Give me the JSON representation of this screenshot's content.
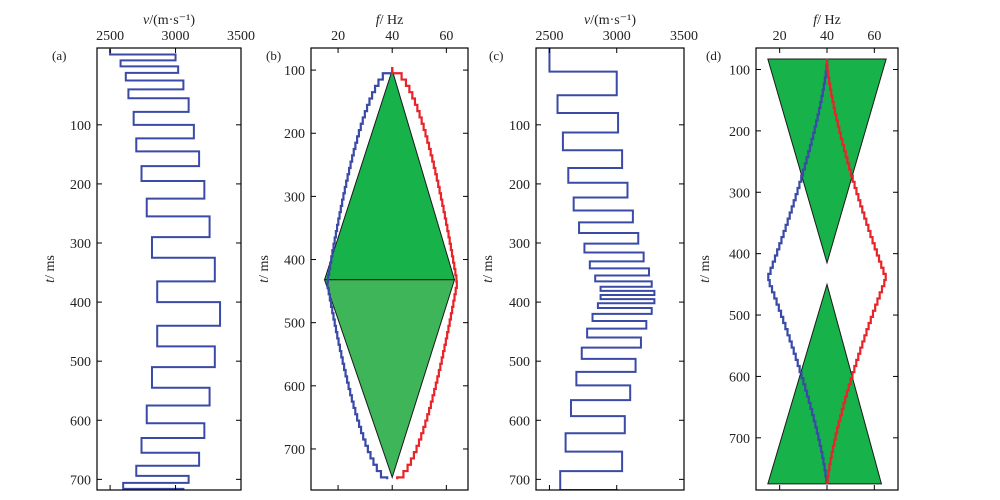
{
  "colors": {
    "velocity": "#3a4aa6",
    "freq_low": "#3a4aa6",
    "freq_high": "#e8242b",
    "fill_top": "#17b24a",
    "fill_bottom": "#3fb55a",
    "frame": "#000000"
  },
  "chart_data": [
    {
      "panel": "(a)",
      "type": "line",
      "title": "",
      "xlabel_prefix": "v",
      "xlabel_unit": "/(m·s⁻¹)",
      "ylabel_prefix": "t",
      "ylabel_unit": "/ ms",
      "xlim": [
        2400,
        3500
      ],
      "ylim": [
        -30,
        718
      ],
      "xticks": [
        2500,
        3000,
        3500
      ],
      "yticks": [
        100,
        200,
        300,
        400,
        500,
        600,
        700
      ],
      "series": [
        {
          "name": "velocity",
          "step_profile": [
            {
              "t0": -28,
              "t1": -19,
              "v": 2500
            },
            {
              "t0": -19,
              "t1": -9,
              "v": 3000
            },
            {
              "t0": -9,
              "t1": 1,
              "v": 2580
            },
            {
              "t0": 1,
              "t1": 12,
              "v": 3020
            },
            {
              "t0": 12,
              "t1": 25,
              "v": 2620
            },
            {
              "t0": 25,
              "t1": 40,
              "v": 3060
            },
            {
              "t0": 40,
              "t1": 55,
              "v": 2640
            },
            {
              "t0": 55,
              "t1": 78,
              "v": 3100
            },
            {
              "t0": 78,
              "t1": 100,
              "v": 2680
            },
            {
              "t0": 100,
              "t1": 123,
              "v": 3140
            },
            {
              "t0": 123,
              "t1": 145,
              "v": 2700
            },
            {
              "t0": 145,
              "t1": 170,
              "v": 3180
            },
            {
              "t0": 170,
              "t1": 195,
              "v": 2740
            },
            {
              "t0": 195,
              "t1": 225,
              "v": 3220
            },
            {
              "t0": 225,
              "t1": 255,
              "v": 2780
            },
            {
              "t0": 255,
              "t1": 290,
              "v": 3260
            },
            {
              "t0": 290,
              "t1": 325,
              "v": 2820
            },
            {
              "t0": 325,
              "t1": 365,
              "v": 3300
            },
            {
              "t0": 365,
              "t1": 400,
              "v": 2860
            },
            {
              "t0": 400,
              "t1": 440,
              "v": 3340
            },
            {
              "t0": 440,
              "t1": 475,
              "v": 2860
            },
            {
              "t0": 475,
              "t1": 510,
              "v": 3300
            },
            {
              "t0": 510,
              "t1": 545,
              "v": 2820
            },
            {
              "t0": 545,
              "t1": 575,
              "v": 3260
            },
            {
              "t0": 575,
              "t1": 605,
              "v": 2780
            },
            {
              "t0": 605,
              "t1": 630,
              "v": 3220
            },
            {
              "t0": 630,
              "t1": 655,
              "v": 2740
            },
            {
              "t0": 655,
              "t1": 677,
              "v": 3180
            },
            {
              "t0": 677,
              "t1": 694,
              "v": 2700
            },
            {
              "t0": 694,
              "t1": 706,
              "v": 3100
            },
            {
              "t0": 706,
              "t1": 716,
              "v": 2600
            },
            {
              "t0": 716,
              "t1": 720,
              "v": 3060
            }
          ]
        }
      ]
    },
    {
      "panel": "(b)",
      "type": "area",
      "title": "",
      "xlabel_prefix": "f",
      "xlabel_unit": "/ Hz",
      "ylabel_prefix": "t",
      "ylabel_unit": "/ ms",
      "xlim": [
        10,
        68
      ],
      "ylim": [
        65,
        765
      ],
      "xticks": [
        20,
        40,
        60
      ],
      "yticks": [
        100,
        200,
        300,
        400,
        500,
        600,
        700
      ],
      "envelope": {
        "t_start": 95,
        "t_mid": 432,
        "t_end": 748,
        "center_f": 40,
        "max_spread": 24,
        "exponent": 0.55,
        "step": 10,
        "low_series_name": "low-frequency bound",
        "high_series_name": "high-frequency bound"
      },
      "polygons": [
        {
          "name": "top-triangle",
          "points": [
            [
              40,
              100
            ],
            [
              15,
              432
            ],
            [
              63,
              432
            ]
          ],
          "color_key": "fill_top"
        },
        {
          "name": "bottom-triangle",
          "points": [
            [
              15,
              432
            ],
            [
              63,
              432
            ],
            [
              40,
              745
            ]
          ],
          "color_key": "fill_bottom"
        }
      ]
    },
    {
      "panel": "(c)",
      "type": "line",
      "title": "",
      "xlabel_prefix": "v",
      "xlabel_unit": "/(m·s⁻¹)",
      "ylabel_prefix": "t",
      "ylabel_unit": "/ ms",
      "xlim": [
        2400,
        3500
      ],
      "ylim": [
        -30,
        718
      ],
      "xticks": [
        2500,
        3000,
        3500
      ],
      "yticks": [
        100,
        200,
        300,
        400,
        500,
        600,
        700
      ],
      "series": [
        {
          "name": "velocity",
          "step_profile": [
            {
              "t0": -30,
              "t1": 10,
              "v": 2500
            },
            {
              "t0": 10,
              "t1": 50,
              "v": 3000
            },
            {
              "t0": 50,
              "t1": 80,
              "v": 2560
            },
            {
              "t0": 80,
              "t1": 113,
              "v": 3010
            },
            {
              "t0": 113,
              "t1": 143,
              "v": 2600
            },
            {
              "t0": 143,
              "t1": 173,
              "v": 3040
            },
            {
              "t0": 173,
              "t1": 198,
              "v": 2640
            },
            {
              "t0": 198,
              "t1": 223,
              "v": 3080
            },
            {
              "t0": 223,
              "t1": 245,
              "v": 2680
            },
            {
              "t0": 245,
              "t1": 265,
              "v": 3120
            },
            {
              "t0": 265,
              "t1": 283,
              "v": 2720
            },
            {
              "t0": 283,
              "t1": 301,
              "v": 3160
            },
            {
              "t0": 301,
              "t1": 316,
              "v": 2760
            },
            {
              "t0": 316,
              "t1": 331,
              "v": 3200
            },
            {
              "t0": 331,
              "t1": 343,
              "v": 2800
            },
            {
              "t0": 343,
              "t1": 355,
              "v": 3240
            },
            {
              "t0": 355,
              "t1": 365,
              "v": 2840
            },
            {
              "t0": 365,
              "t1": 374,
              "v": 3260
            },
            {
              "t0": 374,
              "t1": 381,
              "v": 2880
            },
            {
              "t0": 381,
              "t1": 388,
              "v": 3280
            },
            {
              "t0": 388,
              "t1": 395,
              "v": 2880
            },
            {
              "t0": 395,
              "t1": 402,
              "v": 3280
            },
            {
              "t0": 402,
              "t1": 410,
              "v": 2860
            },
            {
              "t0": 410,
              "t1": 420,
              "v": 3260
            },
            {
              "t0": 420,
              "t1": 432,
              "v": 2820
            },
            {
              "t0": 432,
              "t1": 445,
              "v": 3220
            },
            {
              "t0": 445,
              "t1": 460,
              "v": 2780
            },
            {
              "t0": 460,
              "t1": 477,
              "v": 3180
            },
            {
              "t0": 477,
              "t1": 496,
              "v": 2740
            },
            {
              "t0": 496,
              "t1": 518,
              "v": 3140
            },
            {
              "t0": 518,
              "t1": 541,
              "v": 2700
            },
            {
              "t0": 541,
              "t1": 566,
              "v": 3100
            },
            {
              "t0": 566,
              "t1": 593,
              "v": 2660
            },
            {
              "t0": 593,
              "t1": 622,
              "v": 3060
            },
            {
              "t0": 622,
              "t1": 653,
              "v": 2620
            },
            {
              "t0": 653,
              "t1": 686,
              "v": 3040
            },
            {
              "t0": 686,
              "t1": 718,
              "v": 2580
            },
            {
              "t0": 718,
              "t1": 720,
              "v": 3000
            }
          ]
        }
      ]
    },
    {
      "panel": "(d)",
      "type": "area",
      "title": "",
      "xlabel_prefix": "f",
      "xlabel_unit": "/ Hz",
      "ylabel_prefix": "t",
      "ylabel_unit": "/ ms",
      "xlim": [
        10,
        70
      ],
      "ylim": [
        65,
        785
      ],
      "xticks": [
        20,
        40,
        60
      ],
      "yticks": [
        100,
        200,
        300,
        400,
        500,
        600,
        700
      ],
      "envelope": {
        "t_start": 83,
        "t_mid": 435,
        "t_end": 775,
        "center_f": 40,
        "max_spread": 25,
        "exponent": 1.35,
        "step": 10,
        "low_series_name": "low-frequency bound",
        "high_series_name": "high-frequency bound"
      },
      "polygons": [
        {
          "name": "top-triangle",
          "points": [
            [
              15,
              83
            ],
            [
              65,
              83
            ],
            [
              40,
              415
            ]
          ],
          "color_key": "fill_top"
        },
        {
          "name": "bottom-triangle",
          "points": [
            [
              40,
              450
            ],
            [
              15,
              775
            ],
            [
              63,
              775
            ]
          ],
          "color_key": "fill_top"
        }
      ]
    }
  ]
}
